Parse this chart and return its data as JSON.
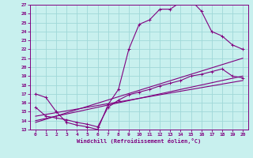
{
  "xlabel": "Windchill (Refroidissement éolien,°C)",
  "bg_color": "#c8f0ee",
  "grid_color": "#a0d8d8",
  "line_color": "#800080",
  "xlim": [
    -0.5,
    20.5
  ],
  "ylim": [
    13,
    27
  ],
  "xticks": [
    0,
    1,
    2,
    3,
    4,
    5,
    6,
    7,
    8,
    9,
    10,
    11,
    12,
    13,
    14,
    15,
    16,
    17,
    18,
    19,
    20
  ],
  "yticks": [
    13,
    14,
    15,
    16,
    17,
    18,
    19,
    20,
    21,
    22,
    23,
    24,
    25,
    26,
    27
  ],
  "curve1_x": [
    0,
    1,
    2,
    3,
    4,
    5,
    6,
    7,
    8,
    9,
    10,
    11,
    12,
    13,
    14,
    15,
    16,
    17,
    18,
    19,
    20
  ],
  "curve1_y": [
    17.0,
    16.6,
    15.0,
    13.8,
    13.5,
    13.3,
    13.0,
    15.8,
    17.5,
    22.0,
    24.8,
    25.3,
    26.5,
    26.5,
    27.3,
    27.5,
    26.3,
    24.0,
    23.5,
    22.5,
    22.0
  ],
  "curve2_x": [
    0,
    1,
    2,
    3,
    4,
    5,
    6,
    7,
    8,
    9,
    10,
    11,
    12,
    13,
    14,
    15,
    16,
    17,
    18,
    19,
    20
  ],
  "curve2_y": [
    15.5,
    14.5,
    14.3,
    14.1,
    13.8,
    13.6,
    13.3,
    15.5,
    16.3,
    16.9,
    17.2,
    17.5,
    17.9,
    18.2,
    18.5,
    19.0,
    19.2,
    19.5,
    19.8,
    19.0,
    18.8
  ],
  "line1_x": [
    0,
    20
  ],
  "line1_y": [
    13.8,
    21.0
  ],
  "line2_x": [
    0,
    20
  ],
  "line2_y": [
    14.0,
    19.0
  ],
  "line3_x": [
    0,
    20
  ],
  "line3_y": [
    14.5,
    18.5
  ]
}
